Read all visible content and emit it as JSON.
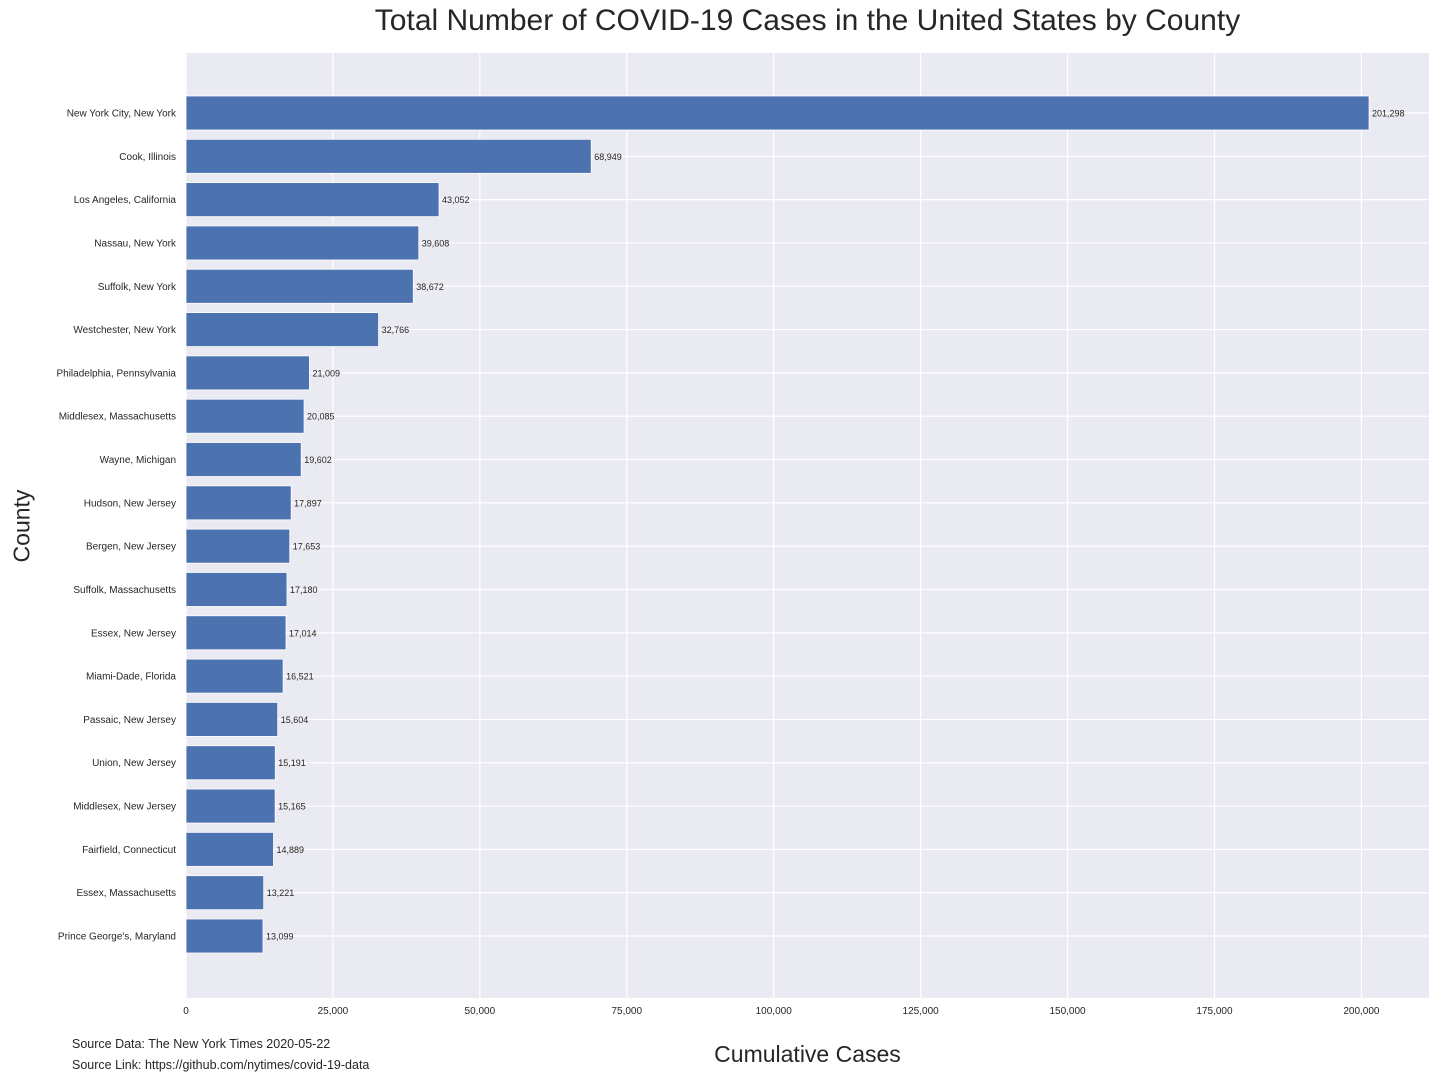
{
  "chart_data": {
    "type": "bar",
    "orientation": "horizontal",
    "title": "Total Number of COVID-19 Cases in the United States by County",
    "xlabel": "Cumulative Cases",
    "ylabel": "County",
    "xlim": [
      0,
      211500
    ],
    "xticks": [
      0,
      25000,
      50000,
      75000,
      100000,
      125000,
      150000,
      175000,
      200000
    ],
    "xtick_labels": [
      "0",
      "25,000",
      "50,000",
      "75,000",
      "100,000",
      "125,000",
      "150,000",
      "175,000",
      "200,000"
    ],
    "grid": true,
    "bar_color": "#4c72b0",
    "background_color": "#eaeaf2",
    "categories": [
      "New York City, New York",
      "Cook, Illinois",
      "Los Angeles, California",
      "Nassau, New York",
      "Suffolk, New York",
      "Westchester, New York",
      "Philadelphia, Pennsylvania",
      "Middlesex, Massachusetts",
      "Wayne, Michigan",
      "Hudson, New Jersey",
      "Bergen, New Jersey",
      "Suffolk, Massachusetts",
      "Essex, New Jersey",
      "Miami-Dade, Florida",
      "Passaic, New Jersey",
      "Union, New Jersey",
      "Middlesex, New Jersey",
      "Fairfield, Connecticut",
      "Essex, Massachusetts",
      "Prince George's, Maryland"
    ],
    "values": [
      201298,
      68949,
      43052,
      39608,
      38672,
      32766,
      21009,
      20085,
      19602,
      17897,
      17653,
      17180,
      17014,
      16521,
      15604,
      15191,
      15165,
      14889,
      13221,
      13099
    ],
    "value_labels": [
      "201,298",
      "68,949",
      "43,052",
      "39,608",
      "38,672",
      "32,766",
      "21,009",
      "20,085",
      "19,602",
      "17,897",
      "17,653",
      "17,180",
      "17,014",
      "16,521",
      "15,604",
      "15,191",
      "15,165",
      "14,889",
      "13,221",
      "13,099"
    ]
  },
  "footer": {
    "source_data": "Source Data: The New York Times 2020-05-22",
    "source_link": "Source Link: https://github.com/nytimes/covid-19-data"
  }
}
